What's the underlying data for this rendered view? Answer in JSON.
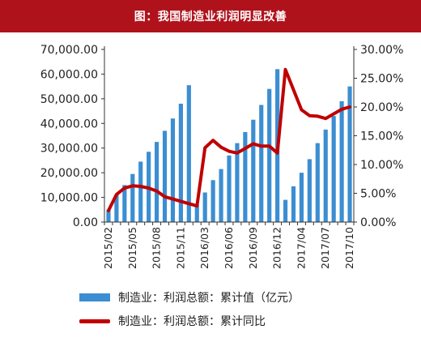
{
  "header": {
    "title": "图：我国制造业利润明显改善"
  },
  "legend": {
    "bar_label": "制造业：利润总额：累计值（亿元）",
    "line_label": "制造业：利润总额：累计同比"
  },
  "colors": {
    "bar": "#3b8ed2",
    "line": "#c00000",
    "title_bg": "#b0121b"
  },
  "chart_data": {
    "type": "bar+line",
    "x_tick_labels": [
      "2015/02",
      "2015/05",
      "2015/08",
      "2015/11",
      "2016/03",
      "2016/06",
      "2016/09",
      "2016/12",
      "2017/04",
      "2017/07",
      "2017/10"
    ],
    "x": [
      "2015/02",
      "2015/03",
      "2015/04",
      "2015/05",
      "2015/06",
      "2015/07",
      "2015/08",
      "2015/09",
      "2015/10",
      "2015/11",
      "2015/12",
      "2016/02",
      "2016/03",
      "2016/04",
      "2016/05",
      "2016/06",
      "2016/07",
      "2016/08",
      "2016/09",
      "2016/10",
      "2016/11",
      "2016/12",
      "2017/02",
      "2017/03",
      "2017/04",
      "2017/05",
      "2017/06",
      "2017/07",
      "2017/08",
      "2017/09",
      "2017/10"
    ],
    "series": [
      {
        "name": "制造业：利润总额：累计值（亿元）",
        "axis": "left",
        "type": "bar",
        "values": [
          5000,
          11000,
          15000,
          19500,
          24500,
          28500,
          32500,
          37000,
          42000,
          48000,
          55500,
          7000,
          12000,
          17000,
          21500,
          27000,
          32000,
          36500,
          41500,
          47500,
          54000,
          62000,
          9000,
          14500,
          20000,
          25500,
          32000,
          37500,
          43000,
          49000,
          55000
        ]
      },
      {
        "name": "制造业：利润总额：累计同比",
        "axis": "right",
        "type": "line",
        "values": [
          2.0,
          4.8,
          5.9,
          6.3,
          6.2,
          5.9,
          5.4,
          4.4,
          4.0,
          3.6,
          3.2,
          2.8,
          12.9,
          14.2,
          13.0,
          12.3,
          12.0,
          12.8,
          13.6,
          13.2,
          13.2,
          12.0,
          26.5,
          23.0,
          19.5,
          18.5,
          18.4,
          18.0,
          18.8,
          19.6,
          20.0
        ]
      }
    ],
    "y_left": {
      "ticks": [
        "0.00",
        "10,000.00",
        "20,000.00",
        "30,000.00",
        "40,000.00",
        "50,000.00",
        "60,000.00",
        "70,000.00"
      ],
      "ylim": [
        0,
        70000
      ]
    },
    "y_right": {
      "ticks": [
        "0.00%",
        "5.00%",
        "10.00%",
        "15.00%",
        "20.00%",
        "25.00%",
        "30.00%"
      ],
      "ylim": [
        0,
        30
      ]
    },
    "grid": false,
    "legend_position": "bottom"
  }
}
